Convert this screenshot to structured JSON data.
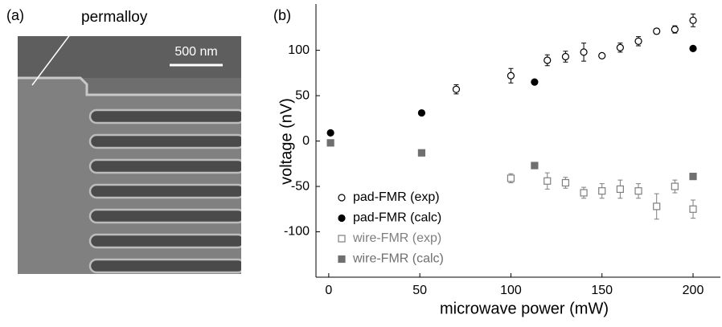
{
  "panel_a": {
    "label": "(a)",
    "annotation": "permalloy",
    "scale_bar": "500 nm"
  },
  "chart_data": {
    "type": "scatter",
    "panel_label": "(b)",
    "xlabel": "microwave power (mW)",
    "ylabel": "voltage (nV)",
    "xlim": [
      -7,
      215
    ],
    "ylim": [
      -150,
      151
    ],
    "xticks": [
      0,
      50,
      100,
      150,
      200
    ],
    "yticks": [
      -100,
      -50,
      0,
      50,
      100
    ],
    "legend": "lower left",
    "series": [
      {
        "name": "pad-FMR (exp)",
        "color": "#000000",
        "marker": "circle",
        "filled": false,
        "x": [
          70,
          100,
          120,
          130,
          140,
          150,
          160,
          170,
          180,
          190,
          200
        ],
        "values": [
          57,
          72,
          89,
          93,
          98,
          94,
          103,
          110,
          121,
          123,
          133
        ],
        "errors": [
          5,
          8,
          6,
          6,
          10,
          2,
          5,
          5,
          3,
          4,
          7
        ]
      },
      {
        "name": "pad-FMR (calc)",
        "color": "#000000",
        "marker": "circle",
        "filled": true,
        "x": [
          1,
          51,
          113,
          200
        ],
        "values": [
          9,
          31,
          65,
          102
        ]
      },
      {
        "name": "wire-FMR (exp)",
        "color": "#7f7f7f",
        "marker": "square",
        "filled": false,
        "x": [
          100,
          120,
          130,
          140,
          150,
          160,
          170,
          180,
          190,
          200
        ],
        "values": [
          -41,
          -44,
          -46,
          -57,
          -55,
          -53,
          -55,
          -72,
          -50,
          -75
        ],
        "errors": [
          5,
          9,
          6,
          6,
          8,
          10,
          8,
          14,
          7,
          10
        ]
      },
      {
        "name": "wire-FMR (calc)",
        "color": "#6f6f6f",
        "marker": "square",
        "filled": true,
        "x": [
          1,
          51,
          113,
          200
        ],
        "values": [
          -2,
          -13,
          -27,
          -39
        ]
      }
    ]
  }
}
